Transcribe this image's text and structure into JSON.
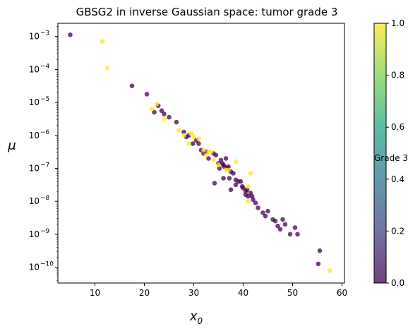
{
  "chart_data": {
    "type": "scatter",
    "title": "GBSG2 in inverse Gaussian space: tumor grade 3",
    "xlabel": "x",
    "xlabel_sub": "0",
    "ylabel": "μ",
    "xscale": "linear",
    "yscale": "log",
    "xlim": [
      2.5,
      60.5
    ],
    "ylim_log10": [
      -10.48,
      -2.6
    ],
    "xticks": [
      10,
      20,
      30,
      40,
      50,
      60
    ],
    "yticks": [
      {
        "exp": -10,
        "base": "10",
        "sup": "−10"
      },
      {
        "exp": -9,
        "base": "10",
        "sup": "−9"
      },
      {
        "exp": -8,
        "base": "10",
        "sup": "−8"
      },
      {
        "exp": -7,
        "base": "10",
        "sup": "−7"
      },
      {
        "exp": -6,
        "base": "10",
        "sup": "−6"
      },
      {
        "exp": -5,
        "base": "10",
        "sup": "−5"
      },
      {
        "exp": -4,
        "base": "10",
        "sup": "−4"
      },
      {
        "exp": -3,
        "base": "10",
        "sup": "−3"
      }
    ],
    "colorbar": {
      "label": "Grade 3",
      "range": [
        0,
        1
      ],
      "ticks": [
        "0.0",
        "0.2",
        "0.4",
        "0.6",
        "0.8",
        "1.0"
      ],
      "colormap": [
        "#440154",
        "#414487",
        "#2a788e",
        "#22a884",
        "#7ad151",
        "#fde725"
      ],
      "alpha": 0.75
    },
    "point_colors": {
      "0": "#440154",
      "1": "#fde725"
    },
    "series": [
      {
        "grade3": 0,
        "points": [
          [
            5.0,
            -2.95
          ],
          [
            17.5,
            -4.5
          ],
          [
            20.5,
            -4.75
          ],
          [
            22.0,
            -5.3
          ],
          [
            22.8,
            -5.1
          ],
          [
            23.5,
            -5.25
          ],
          [
            24.0,
            -5.35
          ],
          [
            25.0,
            -5.45
          ],
          [
            26.5,
            -5.6
          ],
          [
            28.0,
            -5.9
          ],
          [
            28.5,
            -6.05
          ],
          [
            29.0,
            -6.0
          ],
          [
            30.5,
            -6.15
          ],
          [
            31.0,
            -6.25
          ],
          [
            31.5,
            -6.45
          ],
          [
            32.0,
            -6.55
          ],
          [
            33.0,
            -6.7
          ],
          [
            34.0,
            -6.55
          ],
          [
            34.5,
            -6.6
          ],
          [
            35.0,
            -6.85
          ],
          [
            35.5,
            -6.75
          ],
          [
            36.0,
            -6.9
          ],
          [
            36.5,
            -6.7
          ],
          [
            36.8,
            -7.0
          ],
          [
            37.0,
            -6.95
          ],
          [
            37.5,
            -7.1
          ],
          [
            38.0,
            -7.15
          ],
          [
            36.0,
            -7.3
          ],
          [
            37.2,
            -7.3
          ],
          [
            35.2,
            -7.0
          ],
          [
            34.2,
            -7.45
          ],
          [
            37.5,
            -7.65
          ],
          [
            39.0,
            -7.4
          ],
          [
            38.5,
            -7.5
          ],
          [
            40.0,
            -7.6
          ],
          [
            40.5,
            -7.7
          ],
          [
            41.0,
            -7.85
          ],
          [
            41.5,
            -7.75
          ],
          [
            41.8,
            -7.85
          ],
          [
            42.0,
            -7.95
          ],
          [
            42.5,
            -8.05
          ],
          [
            43.0,
            -8.2
          ],
          [
            40.8,
            -7.65
          ],
          [
            44.0,
            -8.35
          ],
          [
            44.5,
            -8.45
          ],
          [
            45.0,
            -8.3
          ],
          [
            46.0,
            -8.55
          ],
          [
            46.5,
            -8.6
          ],
          [
            47.0,
            -8.75
          ],
          [
            47.5,
            -8.85
          ],
          [
            48.0,
            -8.55
          ],
          [
            48.5,
            -8.7
          ],
          [
            49.5,
            -9.0
          ],
          [
            50.5,
            -8.8
          ],
          [
            51.0,
            -9.0
          ],
          [
            55.5,
            -9.5
          ],
          [
            55.2,
            -9.9
          ],
          [
            39.5,
            -7.4
          ],
          [
            40.5,
            -7.8
          ],
          [
            38.5,
            -7.35
          ],
          [
            35.8,
            -6.85
          ],
          [
            36.2,
            -6.95
          ],
          [
            29.8,
            -6.25
          ],
          [
            32.5,
            -6.5
          ],
          [
            39.8,
            -7.55
          ]
        ]
      },
      {
        "grade3": 1,
        "points": [
          [
            11.5,
            -3.15
          ],
          [
            12.5,
            -3.95
          ],
          [
            21.5,
            -5.2
          ],
          [
            22.5,
            -5.05
          ],
          [
            24.0,
            -5.5
          ],
          [
            27.0,
            -5.85
          ],
          [
            28.0,
            -6.0
          ],
          [
            29.0,
            -6.25
          ],
          [
            29.5,
            -5.95
          ],
          [
            30.0,
            -6.05
          ],
          [
            31.0,
            -6.1
          ],
          [
            32.5,
            -6.6
          ],
          [
            33.0,
            -6.5
          ],
          [
            33.5,
            -6.5
          ],
          [
            34.0,
            -6.75
          ],
          [
            35.0,
            -6.9
          ],
          [
            36.5,
            -7.05
          ],
          [
            38.5,
            -6.8
          ],
          [
            37.0,
            -7.05
          ],
          [
            41.0,
            -7.55
          ],
          [
            41.5,
            -7.15
          ],
          [
            41.0,
            -8.0
          ],
          [
            57.5,
            -10.1
          ],
          [
            29.5,
            -5.95
          ],
          [
            32.0,
            -6.45
          ]
        ]
      }
    ]
  }
}
